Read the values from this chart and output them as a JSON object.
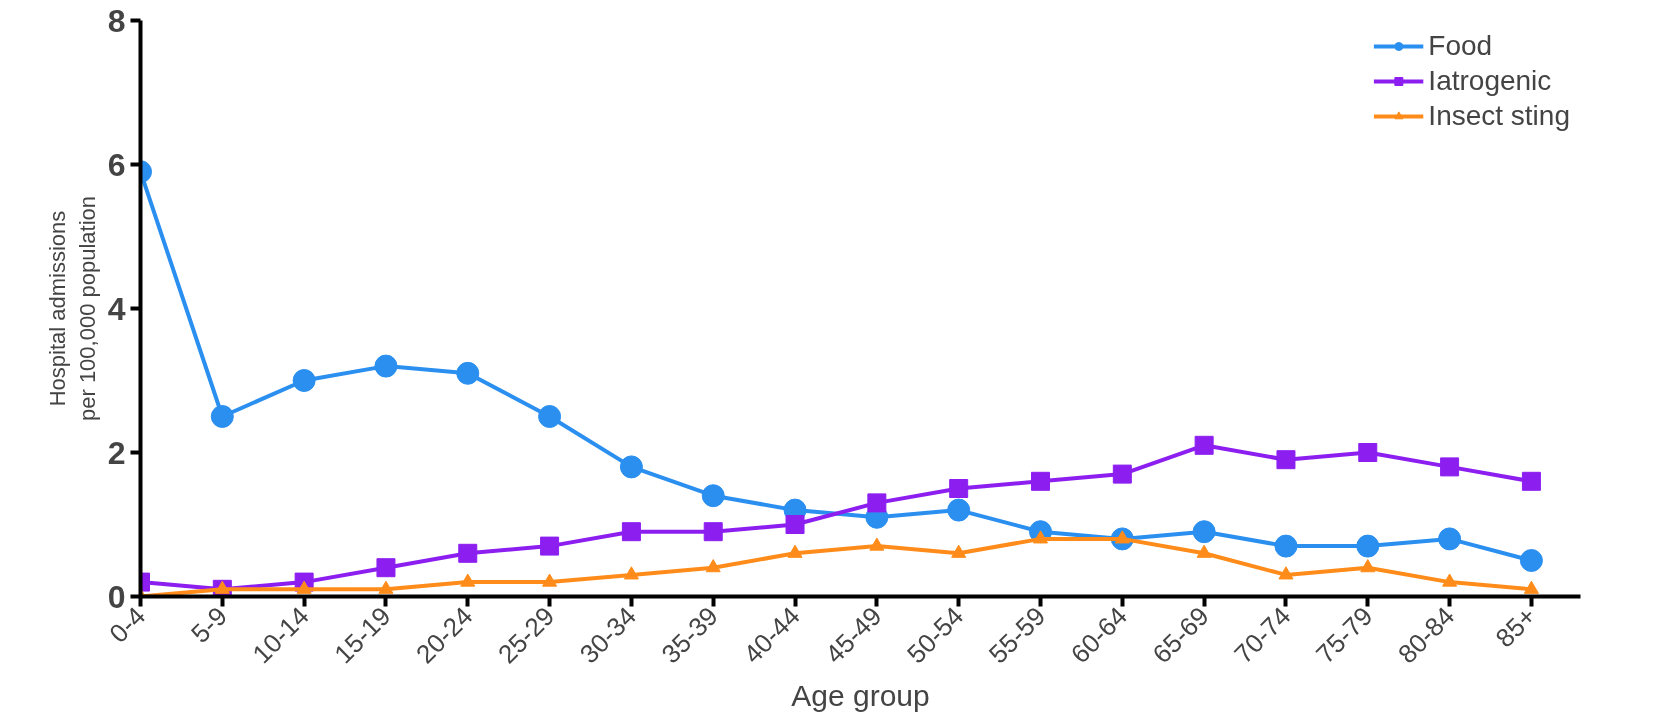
{
  "chart_data": {
    "type": "line",
    "xlabel": "Age group",
    "ylabel": "Hospital admissions\nper 100,000 population",
    "categories": [
      "0-4",
      "5-9",
      "10-14",
      "15-19",
      "20-24",
      "25-29",
      "30-34",
      "35-39",
      "40-44",
      "45-49",
      "50-54",
      "55-59",
      "60-64",
      "65-69",
      "70-74",
      "75-79",
      "80-84",
      "85+"
    ],
    "series": [
      {
        "name": "Food",
        "color": "#2b8ff0",
        "marker": "circle",
        "values": [
          5.9,
          2.5,
          3.0,
          3.2,
          3.1,
          2.5,
          1.8,
          1.4,
          1.2,
          1.1,
          1.2,
          0.9,
          0.8,
          0.9,
          0.7,
          0.7,
          0.8,
          0.5
        ]
      },
      {
        "name": "Iatrogenic",
        "color": "#8c1ff0",
        "marker": "square",
        "values": [
          0.2,
          0.1,
          0.2,
          0.4,
          0.6,
          0.7,
          0.9,
          0.9,
          1.0,
          1.3,
          1.5,
          1.6,
          1.7,
          2.1,
          1.9,
          2.0,
          1.8,
          1.6
        ]
      },
      {
        "name": "Insect sting",
        "color": "#ff8c1a",
        "marker": "triangle",
        "values": [
          0.0,
          0.1,
          0.1,
          0.1,
          0.2,
          0.2,
          0.3,
          0.4,
          0.6,
          0.7,
          0.6,
          0.8,
          0.8,
          0.6,
          0.3,
          0.4,
          0.2,
          0.1
        ]
      }
    ],
    "ylim": [
      0,
      8
    ],
    "yticks": [
      0,
      2,
      4,
      6,
      8
    ],
    "grid": false,
    "legend": "top right",
    "line_style": "solid"
  }
}
